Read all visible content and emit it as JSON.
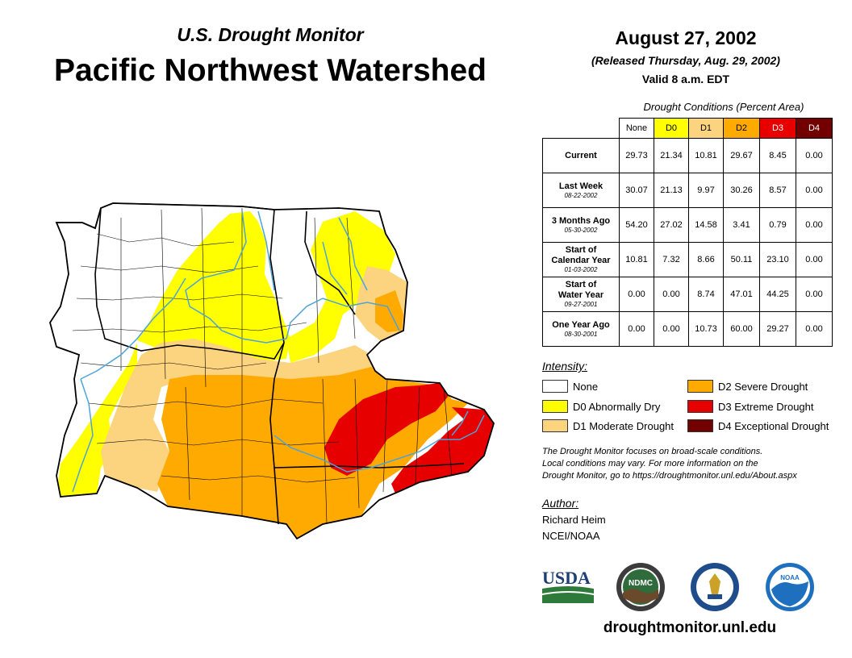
{
  "header": {
    "subtitle": "U.S. Drought Monitor",
    "title": "Pacific Northwest Watershed"
  },
  "date_block": {
    "date": "August 27, 2002",
    "released": "(Released Thursday, Aug. 29, 2002)",
    "valid": "Valid 8 a.m. EDT"
  },
  "conditions_table": {
    "caption": "Drought Conditions (Percent Area)",
    "columns": [
      "None",
      "D0",
      "D1",
      "D2",
      "D3",
      "D4"
    ],
    "column_colors": [
      "#ffffff",
      "#ffff00",
      "#fcd37f",
      "#ffaa00",
      "#e60000",
      "#730000"
    ],
    "rows": [
      {
        "label": "Current",
        "date": "",
        "values": [
          "29.73",
          "21.34",
          "10.81",
          "29.67",
          "8.45",
          "0.00"
        ]
      },
      {
        "label": "Last Week",
        "date": "08-22-2002",
        "values": [
          "30.07",
          "21.13",
          "9.97",
          "30.26",
          "8.57",
          "0.00"
        ]
      },
      {
        "label": "3 Months Ago",
        "date": "05-30-2002",
        "values": [
          "54.20",
          "27.02",
          "14.58",
          "3.41",
          "0.79",
          "0.00"
        ]
      },
      {
        "label1": "Start of",
        "label2": "Calendar Year",
        "date": "01-03-2002",
        "values": [
          "10.81",
          "7.32",
          "8.66",
          "50.11",
          "23.10",
          "0.00"
        ]
      },
      {
        "label1": "Start of",
        "label2": "Water Year",
        "date": "09-27-2001",
        "values": [
          "0.00",
          "0.00",
          "8.74",
          "47.01",
          "44.25",
          "0.00"
        ]
      },
      {
        "label": "One Year Ago",
        "date": "08-30-2001",
        "values": [
          "0.00",
          "0.00",
          "10.73",
          "60.00",
          "29.27",
          "0.00"
        ]
      }
    ]
  },
  "legend": {
    "title": "Intensity:",
    "items": [
      {
        "label": "None",
        "color": "#ffffff"
      },
      {
        "label": "D0 Abnormally Dry",
        "color": "#ffff00"
      },
      {
        "label": "D1 Moderate Drought",
        "color": "#fcd37f"
      },
      {
        "label": "D2 Severe Drought",
        "color": "#ffaa00"
      },
      {
        "label": "D3 Extreme Drought",
        "color": "#e60000"
      },
      {
        "label": "D4 Exceptional Drought",
        "color": "#730000"
      }
    ]
  },
  "note": {
    "line1": "The Drought Monitor focuses on broad-scale conditions.",
    "line2": "Local conditions may vary. For more information on the",
    "line3": "Drought Monitor, go to https://droughtmonitor.unl.edu/About.aspx"
  },
  "author": {
    "title": "Author:",
    "name": "Richard Heim",
    "org": "NCEI/NOAA"
  },
  "logos": {
    "usda": "USDA",
    "ndmc": "NDMC",
    "noaa": "NOAA"
  },
  "website": "droughtmonitor.unl.edu",
  "colors": {
    "river": "#4ea3d8",
    "border": "#000000"
  }
}
